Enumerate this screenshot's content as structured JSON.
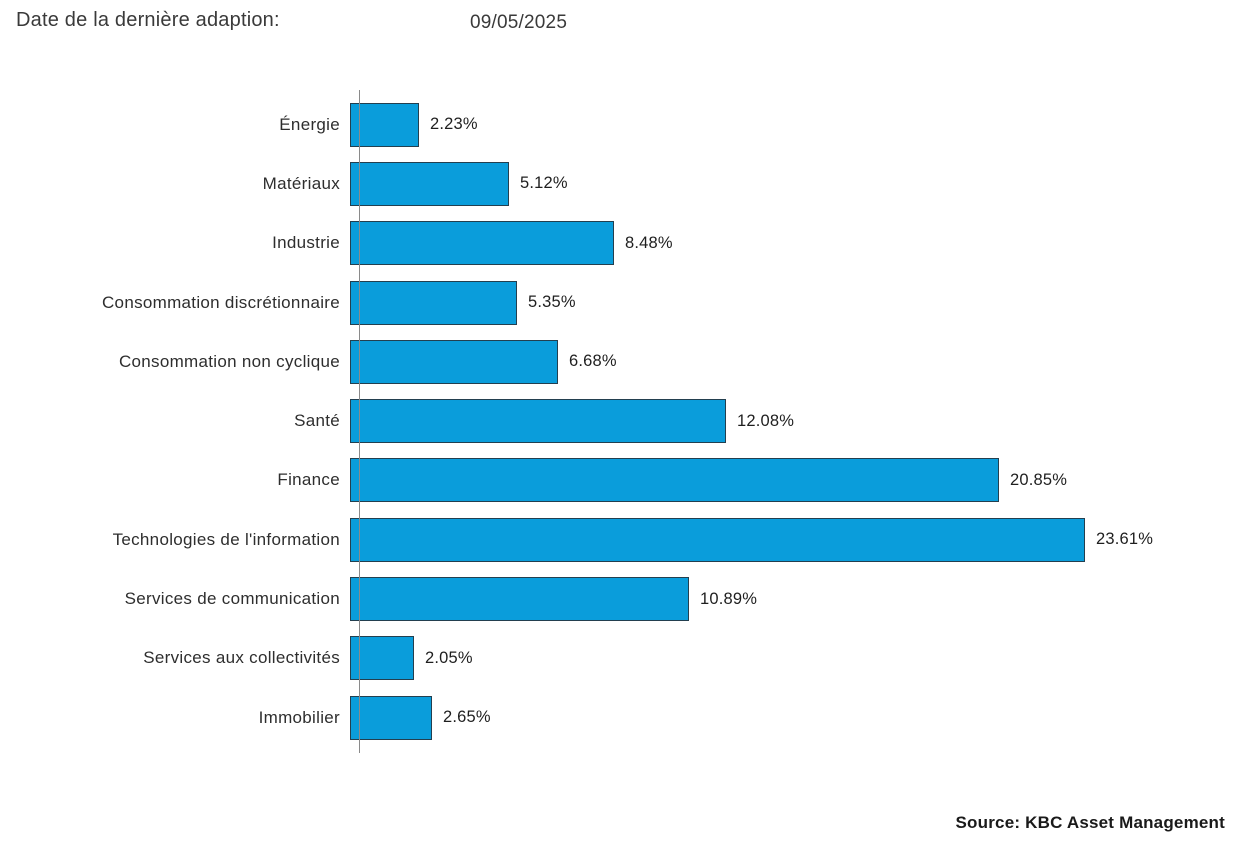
{
  "header": {
    "title": "Date de la dernière adaption:",
    "date": "09/05/2025"
  },
  "chart_data": {
    "type": "bar",
    "orientation": "horizontal",
    "title": "",
    "xlabel": "",
    "ylabel": "",
    "xlim": [
      0,
      25
    ],
    "grid": false,
    "legend": false,
    "categories": [
      "Énergie",
      "Matériaux",
      "Industrie",
      "Consommation discrétionnaire",
      "Consommation non cyclique",
      "Santé",
      "Finance",
      "Technologies de l'information",
      "Services de communication",
      "Services aux collectivités",
      "Immobilier"
    ],
    "values": [
      2.23,
      5.12,
      8.48,
      5.35,
      6.68,
      12.08,
      20.85,
      23.61,
      10.89,
      2.05,
      2.65
    ],
    "data_labels": [
      "2.23%",
      "5.12%",
      "8.48%",
      "5.35%",
      "6.68%",
      "12.08%",
      "20.85%",
      "23.61%",
      "10.89%",
      "2.05%",
      "2.65%"
    ],
    "bar_color": "#0a9ddb",
    "bar_border_color": "#233f4f",
    "axis_color": "#8a8a8a"
  },
  "footer": {
    "source": "Source: KBC Asset Management"
  }
}
